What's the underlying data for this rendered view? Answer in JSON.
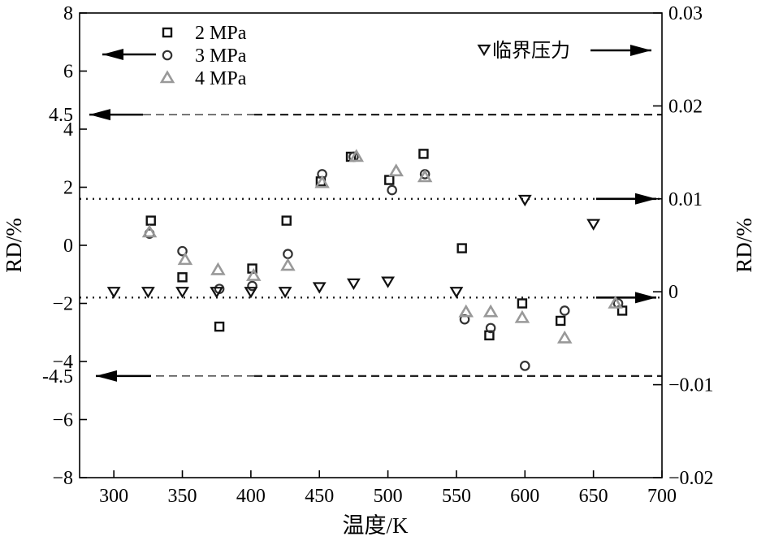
{
  "chart_data": {
    "type": "scatter",
    "xlabel": "温度/K",
    "ylabel_left": "RD/%",
    "ylabel_right": "RD/%",
    "xlim": [
      275,
      700
    ],
    "ylim_left": [
      -8,
      8
    ],
    "ylim_right": [
      -0.02,
      0.03
    ],
    "x_ticks": [
      300,
      350,
      400,
      450,
      500,
      550,
      600,
      650,
      700
    ],
    "y_left_ticks": [
      -8,
      -6,
      -4,
      -2,
      0,
      2,
      4,
      6,
      8
    ],
    "y_right_ticks": [
      -0.02,
      -0.01,
      0,
      0.01,
      0.02,
      0.03
    ],
    "y_left_tick_labels": [
      "−8",
      "−6",
      "−4",
      "−2",
      "0",
      "2",
      "4",
      "6",
      "8"
    ],
    "y_right_tick_labels": [
      "−0.02",
      "−0.01",
      "0",
      "0.01",
      "0.02",
      "0.03"
    ],
    "extra_left_labels": [
      {
        "value": 4.5,
        "text": "4.5"
      },
      {
        "value": -4.5,
        "text": "-4.5"
      }
    ],
    "grid": false,
    "legend_position": "top-left",
    "series": [
      {
        "name": "2 MPa",
        "marker": "square",
        "color": "#111111",
        "axis": "left",
        "points": [
          [
            327,
            0.85
          ],
          [
            350,
            -1.1
          ],
          [
            377,
            -2.8
          ],
          [
            401,
            -0.8
          ],
          [
            426,
            0.85
          ],
          [
            451,
            2.2
          ],
          [
            473,
            3.05
          ],
          [
            501,
            2.25
          ],
          [
            526,
            3.15
          ],
          [
            554,
            -0.1
          ],
          [
            574,
            -3.1
          ],
          [
            598,
            -2.0
          ],
          [
            626,
            -2.6
          ],
          [
            671,
            -2.25
          ]
        ]
      },
      {
        "name": "3 MPa",
        "marker": "circle",
        "color": "#333333",
        "axis": "left",
        "points": [
          [
            326,
            0.4
          ],
          [
            350,
            -0.2
          ],
          [
            377,
            -1.5
          ],
          [
            401,
            -1.4
          ],
          [
            427,
            -0.3
          ],
          [
            452,
            2.45
          ],
          [
            475,
            3.05
          ],
          [
            503,
            1.9
          ],
          [
            527,
            2.45
          ],
          [
            556,
            -2.55
          ],
          [
            575,
            -2.85
          ],
          [
            600,
            -4.15
          ],
          [
            629,
            -2.25
          ],
          [
            668,
            -2.0
          ]
        ]
      },
      {
        "name": "4 MPa",
        "marker": "triangle-up",
        "color": "#999999",
        "axis": "left",
        "points": [
          [
            326,
            0.45
          ],
          [
            352,
            -0.5
          ],
          [
            376,
            -0.85
          ],
          [
            402,
            -1.05
          ],
          [
            427,
            -0.7
          ],
          [
            452,
            2.15
          ],
          [
            477,
            3.05
          ],
          [
            506,
            2.55
          ],
          [
            527,
            2.35
          ],
          [
            557,
            -2.3
          ],
          [
            575,
            -2.3
          ],
          [
            598,
            -2.5
          ],
          [
            629,
            -3.2
          ],
          [
            666,
            -2.0
          ]
        ]
      },
      {
        "name": "临界压力",
        "marker": "triangle-down",
        "color": "#111111",
        "axis": "right",
        "points": [
          [
            300,
            0.0
          ],
          [
            325,
            0.0
          ],
          [
            350,
            0.0
          ],
          [
            375,
            0.0
          ],
          [
            400,
            0.0
          ],
          [
            425,
            0.0
          ],
          [
            450,
            0.0005
          ],
          [
            475,
            0.0009
          ],
          [
            500,
            0.0011
          ],
          [
            550,
            0.0
          ],
          [
            600,
            0.0099
          ],
          [
            650,
            0.0073
          ]
        ]
      }
    ],
    "reference_lines": [
      {
        "axis": "left",
        "value": 4.5,
        "style": "dashed"
      },
      {
        "axis": "left",
        "value": -4.5,
        "style": "dashed"
      },
      {
        "axis": "left",
        "value": 1.6,
        "style": "dotted"
      },
      {
        "axis": "left",
        "value": -1.8,
        "style": "dotted"
      }
    ],
    "annotations": [
      {
        "text": "临界压力",
        "marker": "triangle-down",
        "arrow": "right"
      }
    ]
  }
}
